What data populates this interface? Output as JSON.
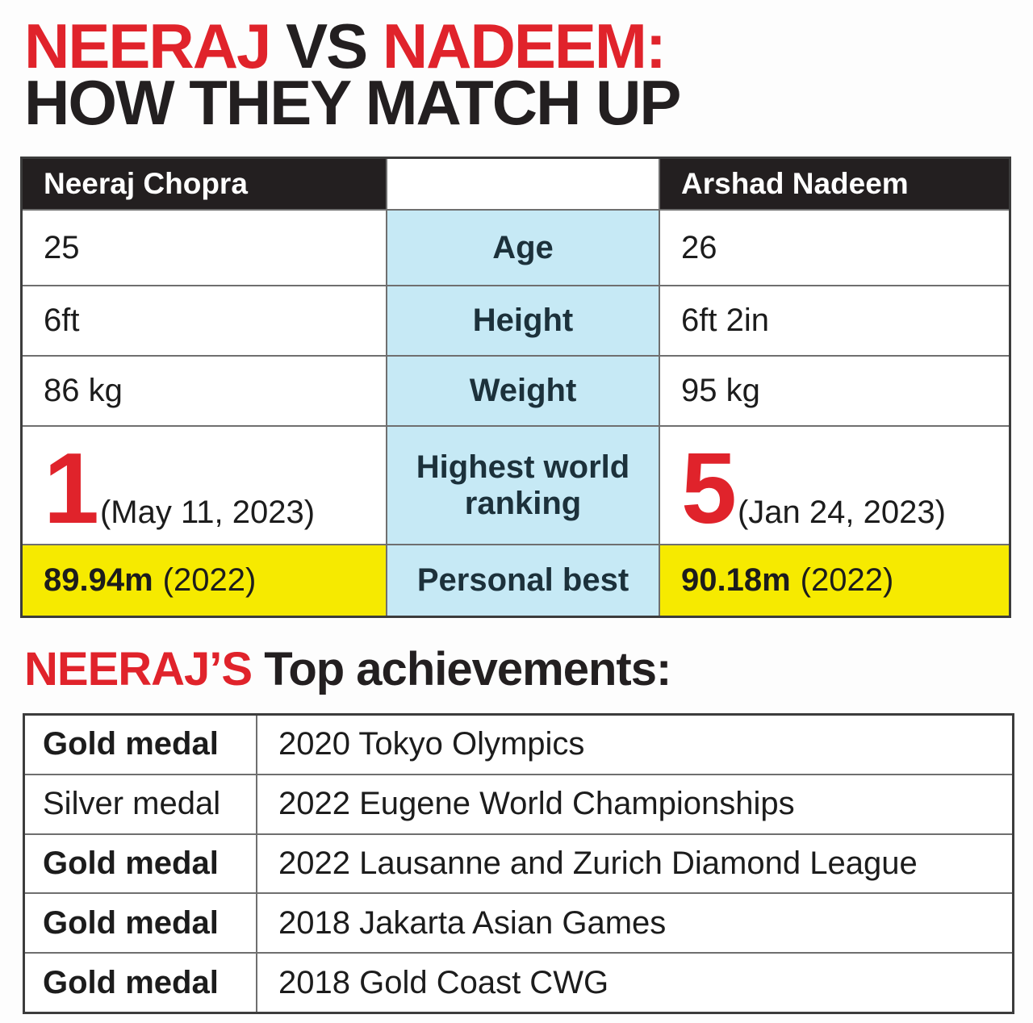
{
  "title": {
    "neeraj": "NEERAJ",
    "vs": " VS ",
    "nadeem": "NADEEM:",
    "line2": "HOW THEY MATCH UP"
  },
  "comparison": {
    "left_header": "Neeraj Chopra",
    "right_header": "Arshad Nadeem",
    "rows": [
      {
        "label": "Age",
        "left": "25",
        "right": "26"
      },
      {
        "label": "Height",
        "left": "6ft",
        "right": "6ft 2in"
      },
      {
        "label": "Weight",
        "left": "86 kg",
        "right": "95 kg"
      },
      {
        "label": "Highest world ranking",
        "left_value": "1",
        "left_note": "(May 11, 2023)",
        "right_value": "5",
        "right_note": "(Jan 24, 2023)"
      },
      {
        "label": "Personal best",
        "left_value": "89.94m",
        "left_note": "(2022)",
        "right_value": "90.18m",
        "right_note": "(2022)",
        "highlight": true
      }
    ]
  },
  "achievements": {
    "heading_red": "NEERAJ’S",
    "heading_rest": " Top achievements:",
    "rows": [
      {
        "medal": "Gold medal",
        "medal_bold": true,
        "event": "2020 Tokyo Olympics"
      },
      {
        "medal": "Silver medal",
        "medal_bold": false,
        "event": "2022 Eugene World Championships"
      },
      {
        "medal": "Gold medal",
        "medal_bold": true,
        "event": "2022 Lausanne and Zurich Diamond League"
      },
      {
        "medal": "Gold medal",
        "medal_bold": true,
        "event": "2018 Jakarta Asian Games"
      },
      {
        "medal": "Gold medal",
        "medal_bold": true,
        "event": "2018 Gold Coast CWG"
      }
    ]
  },
  "colors": {
    "accent_red": "#e0232b",
    "header_black": "#231f20",
    "label_blue": "#c6e9f5",
    "highlight_yellow": "#f6ea00"
  }
}
